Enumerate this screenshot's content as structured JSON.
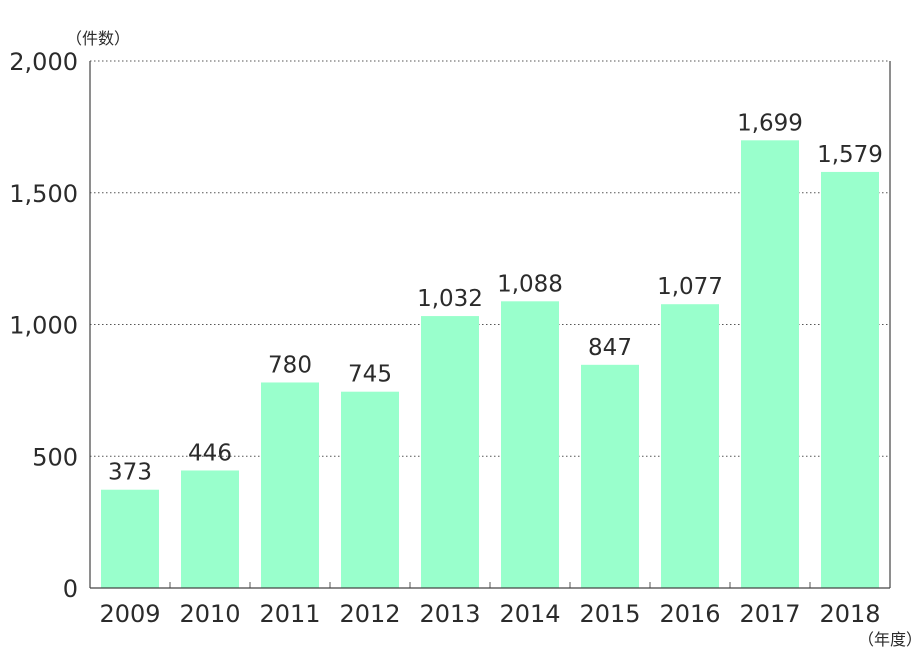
{
  "chart_data": {
    "type": "bar",
    "y_unit_label": "（件数）",
    "x_unit_label": "（年度）",
    "categories": [
      "2009",
      "2010",
      "2011",
      "2012",
      "2013",
      "2014",
      "2015",
      "2016",
      "2017",
      "2018"
    ],
    "values": [
      373,
      446,
      780,
      745,
      1032,
      1088,
      847,
      1077,
      1699,
      1579
    ],
    "value_labels": [
      "373",
      "446",
      "780",
      "745",
      "1,032",
      "1,088",
      "847",
      "1,077",
      "1,699",
      "1,579"
    ],
    "ylim": [
      0,
      2000
    ],
    "y_ticks": [
      0,
      500,
      1000,
      1500,
      2000
    ],
    "y_tick_labels": [
      "0",
      "500",
      "1,000",
      "1,500",
      "2,000"
    ],
    "grid": "horizontal dotted",
    "bar_color": "#99ffcc"
  }
}
